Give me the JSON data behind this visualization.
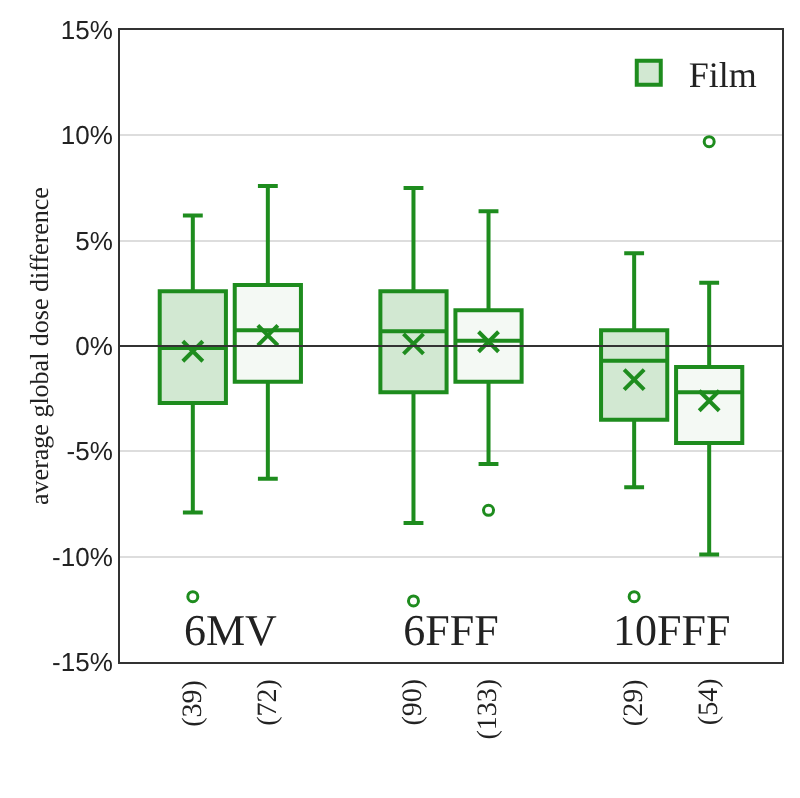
{
  "chart_data": {
    "type": "box",
    "ylabel": "average global dose difference",
    "categories": [
      "6MV",
      "6FFF",
      "10FFF"
    ],
    "ylim": [
      -15,
      15
    ],
    "yticks": [
      {
        "value": -15,
        "label": "-15%"
      },
      {
        "value": -10,
        "label": "-10%"
      },
      {
        "value": -5,
        "label": "-5%"
      },
      {
        "value": 0,
        "label": "0%"
      },
      {
        "value": 5,
        "label": "5%"
      },
      {
        "value": 10,
        "label": "10%"
      },
      {
        "value": 15,
        "label": "15%"
      }
    ],
    "grid": "y",
    "legend": "top right",
    "marker": "cross",
    "ref_lines": [
      {
        "axis": "y",
        "value": 0,
        "color": "#333333"
      }
    ],
    "series": [
      {
        "name": "Film",
        "color": "#1e8c1e",
        "boxes": [
          {
            "low": -7.9,
            "q1": -2.7,
            "median": -0.1,
            "q3": 2.6,
            "high": 6.2,
            "mean": -0.25,
            "outliers": [
              -11.9
            ]
          },
          {
            "low": -8.4,
            "q1": -2.2,
            "median": 0.7,
            "q3": 2.6,
            "high": 7.5,
            "mean": 0.1,
            "outliers": [
              -12.1
            ]
          },
          {
            "low": -6.7,
            "q1": -3.5,
            "median": -0.7,
            "q3": 0.75,
            "high": 4.4,
            "mean": -1.6,
            "outliers": [
              -11.9
            ]
          }
        ]
      },
      {
        "color": "#1e8c1e",
        "boxes": [
          {
            "low": -6.3,
            "q1": -1.7,
            "median": 0.75,
            "q3": 2.9,
            "high": 7.6,
            "mean": 0.5
          },
          {
            "low": -5.6,
            "q1": -1.7,
            "median": 0.25,
            "q3": 1.7,
            "high": 6.4,
            "mean": 0.2,
            "outliers": [
              -7.8
            ]
          },
          {
            "low": -9.9,
            "q1": -4.6,
            "median": -2.2,
            "q3": -1.0,
            "high": 3.0,
            "mean": -2.6,
            "outliers": [
              9.7
            ]
          }
        ]
      }
    ],
    "annotations": [
      "(39)",
      "(72)",
      "(90)",
      "(133)",
      "(29)",
      "(54)"
    ]
  }
}
